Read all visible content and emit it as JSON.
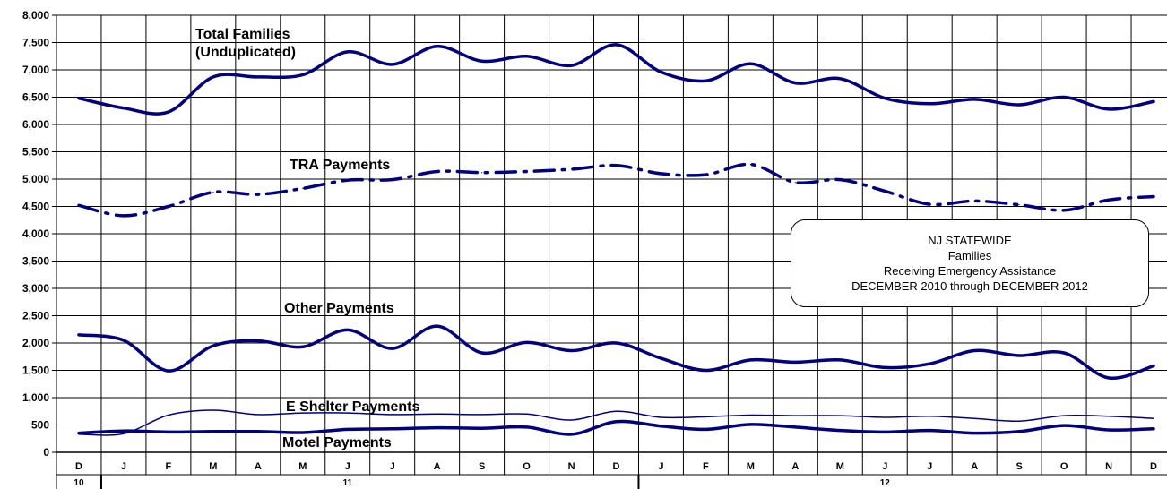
{
  "chart_data": {
    "type": "line",
    "title": "NJ STATEWIDE",
    "subtitle_lines": [
      "Families",
      "Receiving Emergency Assistance",
      "DECEMBER 2010 through DECEMBER 2012"
    ],
    "ylim": [
      0,
      8000
    ],
    "yticks": [
      "0",
      "500",
      "1,000",
      "1,500",
      "2,000",
      "2,500",
      "3,000",
      "3,500",
      "4,000",
      "4,500",
      "5,000",
      "5,500",
      "6,000",
      "6,500",
      "7,000",
      "7,500",
      "8,000"
    ],
    "categories": [
      "D",
      "J",
      "F",
      "M",
      "A",
      "M",
      "J",
      "J",
      "A",
      "S",
      "O",
      "N",
      "D",
      "J",
      "F",
      "M",
      "A",
      "M",
      "J",
      "J",
      "A",
      "S",
      "O",
      "N",
      "D"
    ],
    "year_labels": [
      {
        "label": "10",
        "month_index": 0
      },
      {
        "label": "11",
        "month_index": 6
      },
      {
        "label": "12",
        "month_index": 18
      }
    ],
    "grid": true,
    "series": [
      {
        "name": "Total Families (Unduplicated)",
        "color": "#000080",
        "style": "solid",
        "values": [
          6480,
          6300,
          6230,
          6870,
          6870,
          6910,
          7330,
          7100,
          7430,
          7160,
          7250,
          7080,
          7460,
          6960,
          6800,
          7110,
          6760,
          6840,
          6480,
          6380,
          6460,
          6360,
          6500,
          6280,
          6420
        ]
      },
      {
        "name": "TRA Payments",
        "color": "#000080",
        "style": "dashdot",
        "values": [
          4520,
          4330,
          4500,
          4760,
          4720,
          4830,
          4980,
          4990,
          5140,
          5120,
          5140,
          5180,
          5250,
          5100,
          5080,
          5270,
          4940,
          4990,
          4780,
          4540,
          4600,
          4530,
          4430,
          4620,
          4680
        ]
      },
      {
        "name": "Other Payments",
        "color": "#000080",
        "style": "solid",
        "values": [
          2150,
          2050,
          1490,
          1950,
          2040,
          1930,
          2240,
          1900,
          2310,
          1820,
          2010,
          1860,
          2000,
          1720,
          1500,
          1690,
          1650,
          1690,
          1550,
          1620,
          1860,
          1770,
          1820,
          1360,
          1580
        ]
      },
      {
        "name": "E Shelter Payments",
        "color": "#000080",
        "style": "thin",
        "values": [
          330,
          340,
          680,
          770,
          690,
          720,
          720,
          690,
          700,
          690,
          700,
          590,
          750,
          640,
          650,
          680,
          670,
          670,
          640,
          660,
          620,
          570,
          670,
          660,
          620
        ]
      },
      {
        "name": "Motel Payments",
        "color": "#000080",
        "style": "solid",
        "values": [
          350,
          390,
          370,
          380,
          380,
          360,
          420,
          430,
          450,
          440,
          460,
          330,
          560,
          480,
          420,
          510,
          460,
          400,
          370,
          400,
          350,
          380,
          490,
          410,
          430
        ]
      }
    ],
    "annotations": [
      {
        "text": "Total Families",
        "series": 0
      },
      {
        "text": "(Unduplicated)",
        "series": 0
      },
      {
        "text": "TRA Payments",
        "series": 1
      },
      {
        "text": "Other Payments",
        "series": 2
      },
      {
        "text": "E Shelter Payments",
        "series": 3
      },
      {
        "text": "Motel Payments",
        "series": 4
      }
    ]
  }
}
